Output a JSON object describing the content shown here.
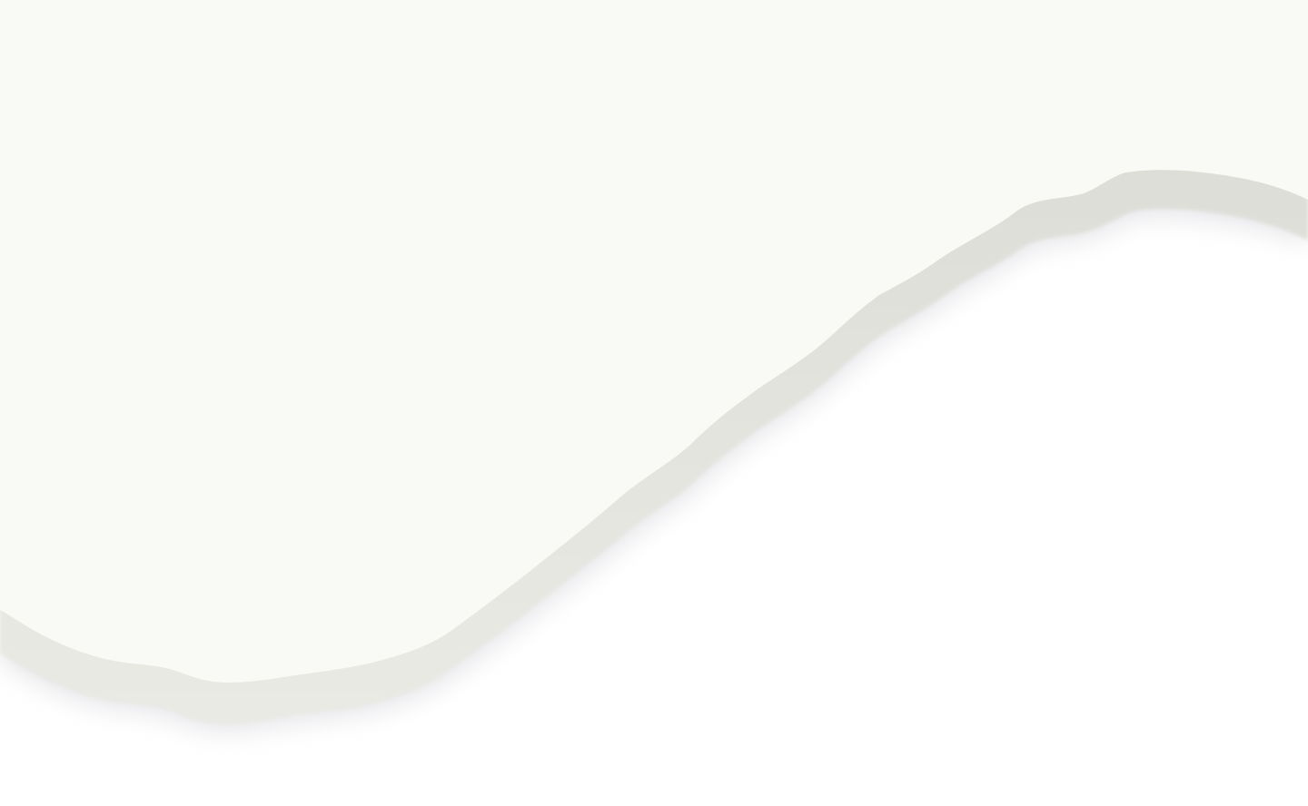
{
  "scene": {
    "background_color": "#ffffff",
    "paper_color": "#f9faf5",
    "edge_color": "#e9eae4",
    "edge_shade_color": "#d9dad3",
    "shadow_color": "#b8b8c2"
  }
}
